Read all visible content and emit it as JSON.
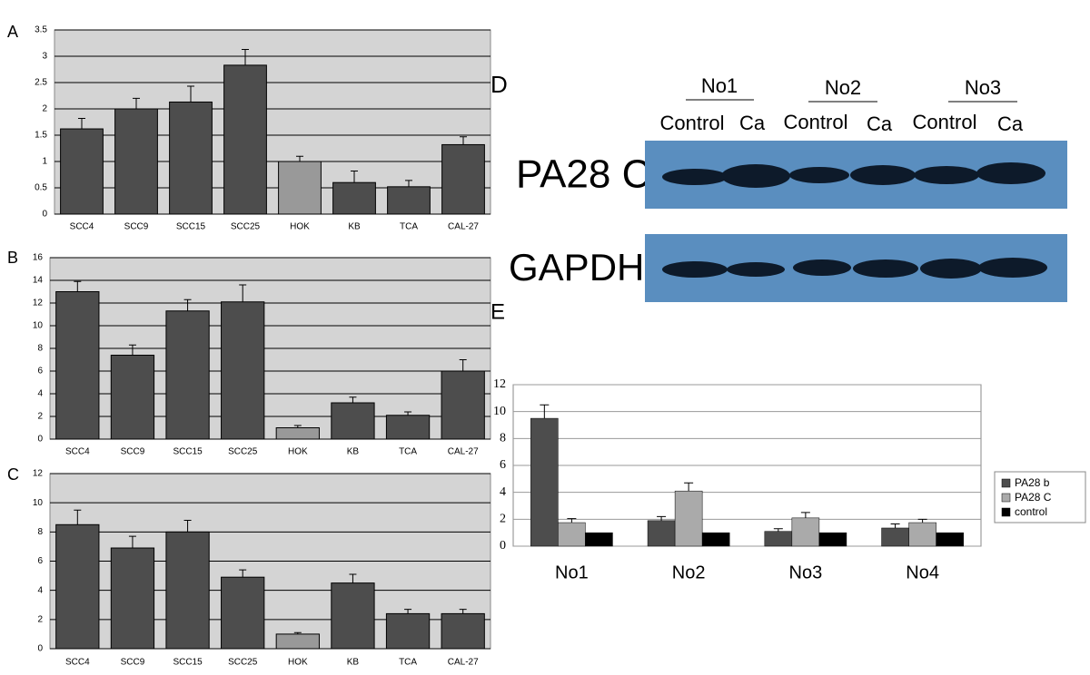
{
  "chart_data": [
    {
      "type": "bar",
      "label": "A",
      "categories": [
        "SCC4",
        "SCC9",
        "SCC15",
        "SCC25",
        "HOK",
        "KB",
        "TCA",
        "CAL-27"
      ],
      "values": [
        1.62,
        2.0,
        2.13,
        2.83,
        1.0,
        0.6,
        0.52,
        1.32
      ],
      "errors": [
        0.2,
        0.2,
        0.3,
        0.3,
        0.1,
        0.22,
        0.12,
        0.15
      ],
      "colors": [
        "#4d4d4d",
        "#4d4d4d",
        "#4d4d4d",
        "#4d4d4d",
        "#999999",
        "#4d4d4d",
        "#4d4d4d",
        "#4d4d4d"
      ],
      "ylim": [
        0,
        3.5
      ],
      "yticks": [
        0,
        0.5,
        1,
        1.5,
        2,
        2.5,
        3,
        3.5
      ],
      "grid": true
    },
    {
      "type": "bar",
      "label": "B",
      "categories": [
        "SCC4",
        "SCC9",
        "SCC15",
        "SCC25",
        "HOK",
        "KB",
        "TCA",
        "CAL-27"
      ],
      "values": [
        13.0,
        7.4,
        11.3,
        12.1,
        1.0,
        3.2,
        2.1,
        6.0
      ],
      "errors": [
        0.9,
        0.9,
        1.0,
        1.5,
        0.2,
        0.5,
        0.3,
        1.0
      ],
      "colors": [
        "#4d4d4d",
        "#4d4d4d",
        "#4d4d4d",
        "#4d4d4d",
        "#999999",
        "#4d4d4d",
        "#4d4d4d",
        "#4d4d4d"
      ],
      "ylim": [
        0,
        16
      ],
      "yticks": [
        0,
        2,
        4,
        6,
        8,
        10,
        12,
        14,
        16
      ],
      "grid": true
    },
    {
      "type": "bar",
      "label": "C",
      "categories": [
        "SCC4",
        "SCC9",
        "SCC15",
        "SCC25",
        "HOK",
        "KB",
        "TCA",
        "CAL-27"
      ],
      "values": [
        8.5,
        6.9,
        8.0,
        4.9,
        1.0,
        4.5,
        2.4,
        2.4
      ],
      "errors": [
        1.0,
        0.8,
        0.8,
        0.5,
        0.1,
        0.6,
        0.3,
        0.3
      ],
      "colors": [
        "#4d4d4d",
        "#4d4d4d",
        "#4d4d4d",
        "#4d4d4d",
        "#999999",
        "#4d4d4d",
        "#4d4d4d",
        "#4d4d4d"
      ],
      "ylim": [
        0,
        12
      ],
      "yticks": [
        0,
        2,
        4,
        6,
        8,
        10,
        12
      ],
      "grid": true
    },
    {
      "type": "bar",
      "label": "E",
      "categories": [
        "No1",
        "No2",
        "No3",
        "No4"
      ],
      "series": [
        {
          "name": "PA28 b",
          "color": "#4d4d4d",
          "values": [
            9.5,
            1.9,
            1.1,
            1.35
          ],
          "errors": [
            1.0,
            0.3,
            0.2,
            0.3
          ]
        },
        {
          "name": "PA28 C",
          "color": "#aaaaaa",
          "values": [
            1.75,
            4.1,
            2.1,
            1.75
          ],
          "errors": [
            0.3,
            0.6,
            0.4,
            0.25
          ]
        },
        {
          "name": "control",
          "color": "#000000",
          "values": [
            1,
            1,
            1,
            1
          ]
        }
      ],
      "ylim": [
        0,
        12
      ],
      "yticks": [
        0,
        2,
        4,
        6,
        8,
        10,
        12
      ],
      "grid": true,
      "legend": "right"
    }
  ],
  "blot": {
    "label": "D",
    "groups": [
      "No1",
      "No2",
      "No3"
    ],
    "lanes": [
      "Control",
      "Ca",
      "Control",
      "Ca",
      "Control",
      "Ca"
    ],
    "rows": [
      "PA28 C",
      "GAPDH"
    ]
  }
}
